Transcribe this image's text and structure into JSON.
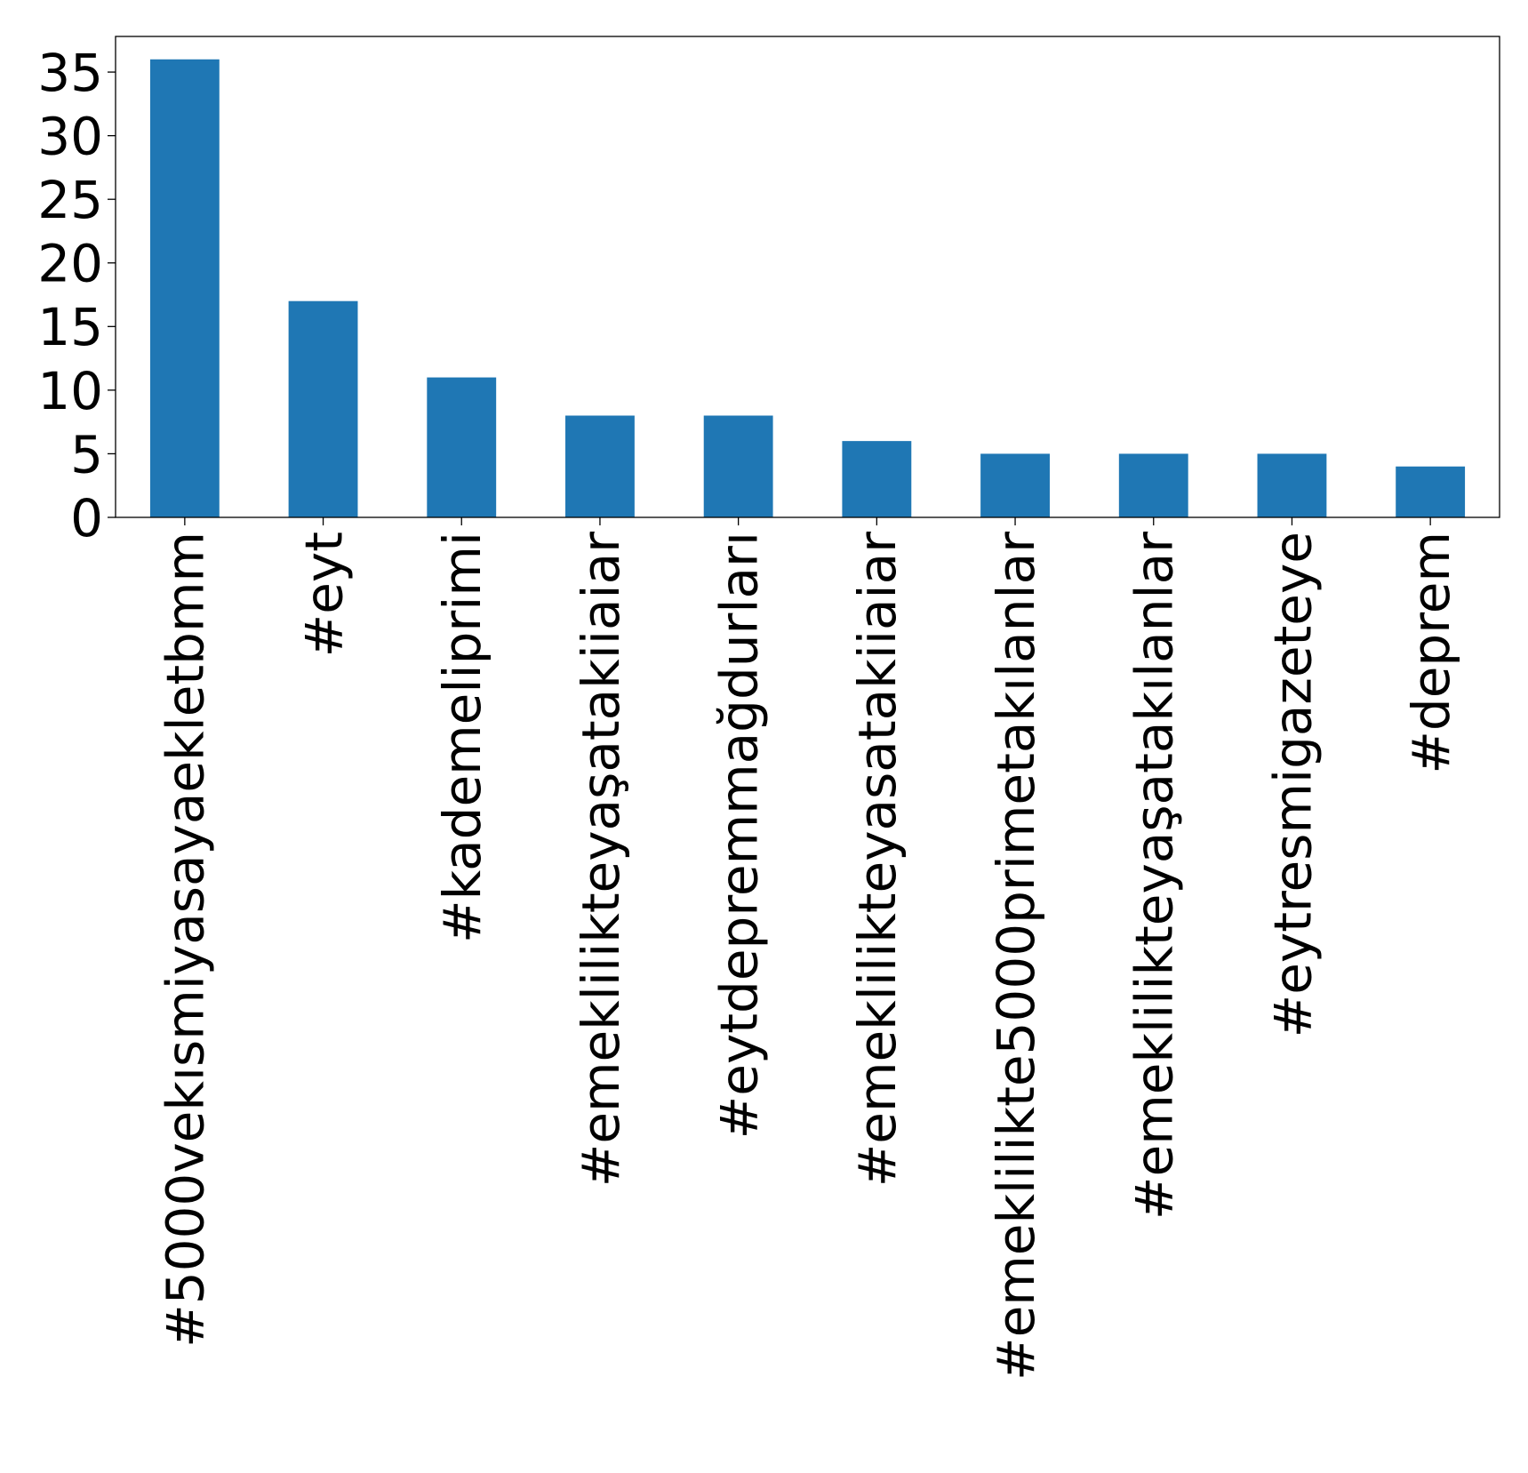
{
  "chart_data": {
    "type": "bar",
    "title": "",
    "xlabel": "",
    "ylabel": "",
    "categories": [
      "#5000vekısmiyasayaekletbmm",
      "#eyt",
      "#kademeliprimi",
      "#emeklilikteyaşatakiiaiar",
      "#eytdepremmağdurları",
      "#emeklilikteyasatakiiaiar",
      "#emeklilikte5000primetakılanlar",
      "#emeklilikteyaşatakılanlar",
      "#eytresmigazeteye",
      "#deprem"
    ],
    "values": [
      36,
      17,
      11,
      8,
      8,
      6,
      5,
      5,
      5,
      4
    ],
    "ylim": [
      0,
      37.8
    ],
    "yticks": [
      0,
      5,
      10,
      15,
      20,
      25,
      30,
      35
    ],
    "grid": false,
    "legend": "none",
    "bar_color": "#1f77b4"
  }
}
